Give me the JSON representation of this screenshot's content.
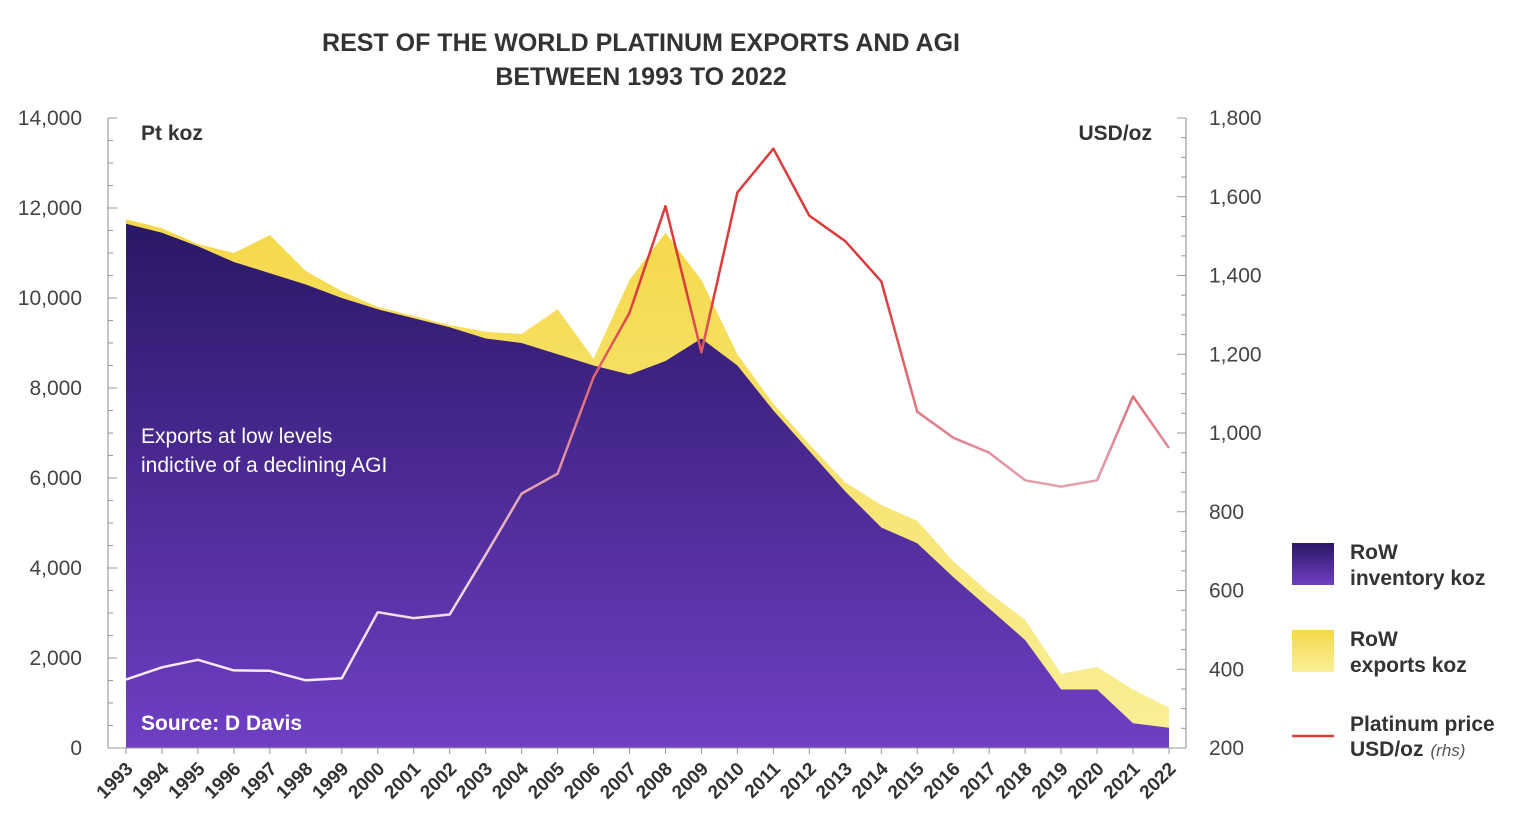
{
  "chart_data": {
    "type": "area",
    "title_lines": [
      "REST OF THE WORLD PLATINUM EXPORTS AND AGI",
      "BETWEEN 1993 TO 2022"
    ],
    "left_unit": "Pt koz",
    "right_unit": "USD/oz",
    "ylim": [
      0,
      14000
    ],
    "y2lim": [
      200,
      1800
    ],
    "yticks": [
      "0",
      "2,000",
      "4,000",
      "6,000",
      "8,000",
      "10,000",
      "12,000",
      "14,000"
    ],
    "y2ticks": [
      "200",
      "400",
      "600",
      "800",
      "1,000",
      "1,200",
      "1,400",
      "1,600",
      "1,800"
    ],
    "categories": [
      "1993",
      "1994",
      "1995",
      "1996",
      "1997",
      "1998",
      "1999",
      "2000",
      "2001",
      "2002",
      "2003",
      "2004",
      "2005",
      "2006",
      "2007",
      "2008",
      "2009",
      "2010",
      "2011",
      "2012",
      "2013",
      "2014",
      "2015",
      "2016",
      "2017",
      "2018",
      "2019",
      "2020",
      "2021",
      "2022"
    ],
    "series": [
      {
        "name": "RoW inventory koz",
        "axis": "left",
        "color_top": "#2a1766",
        "color_bottom": "#6f3fc4",
        "values": [
          11650,
          11450,
          11150,
          10800,
          10550,
          10300,
          10000,
          9750,
          9550,
          9350,
          9100,
          9000,
          8750,
          8500,
          8300,
          8600,
          9100,
          8500,
          7500,
          6600,
          5700,
          4900,
          4550,
          3800,
          3100,
          2400,
          1300,
          1300,
          550,
          450
        ]
      },
      {
        "name": "RoW exports koz",
        "axis": "left",
        "color_top": "#f5d84a",
        "color_bottom": "#f9ef98",
        "values": [
          11750,
          11550,
          11200,
          11000,
          11400,
          10600,
          10150,
          9800,
          9600,
          9400,
          9250,
          9200,
          9750,
          8650,
          10400,
          11450,
          10400,
          8750,
          7650,
          6750,
          5900,
          5400,
          5050,
          4150,
          3450,
          2850,
          1650,
          1800,
          1300,
          900
        ]
      },
      {
        "name": "Platinum price USD/oz",
        "axis": "right",
        "color": "#dc3b3b",
        "values": [
          374,
          405,
          424,
          397,
          396,
          372,
          377,
          545,
          530,
          539,
          691,
          846,
          897,
          1142,
          1305,
          1576,
          1205,
          1611,
          1722,
          1552,
          1487,
          1385,
          1054,
          988,
          950,
          880,
          864,
          880,
          1093,
          962
        ]
      }
    ],
    "legend": [
      {
        "line1": "RoW",
        "line2": "inventory koz"
      },
      {
        "line1": "RoW",
        "line2": "exports koz"
      },
      {
        "line1": "Platinum price",
        "line2": "USD/oz",
        "suffix": "(rhs)"
      }
    ],
    "annotation": [
      "Exports at low levels",
      "indictive of a declining AGI"
    ],
    "source": "Source: D Davis",
    "grid": false,
    "legend_position": "right"
  }
}
